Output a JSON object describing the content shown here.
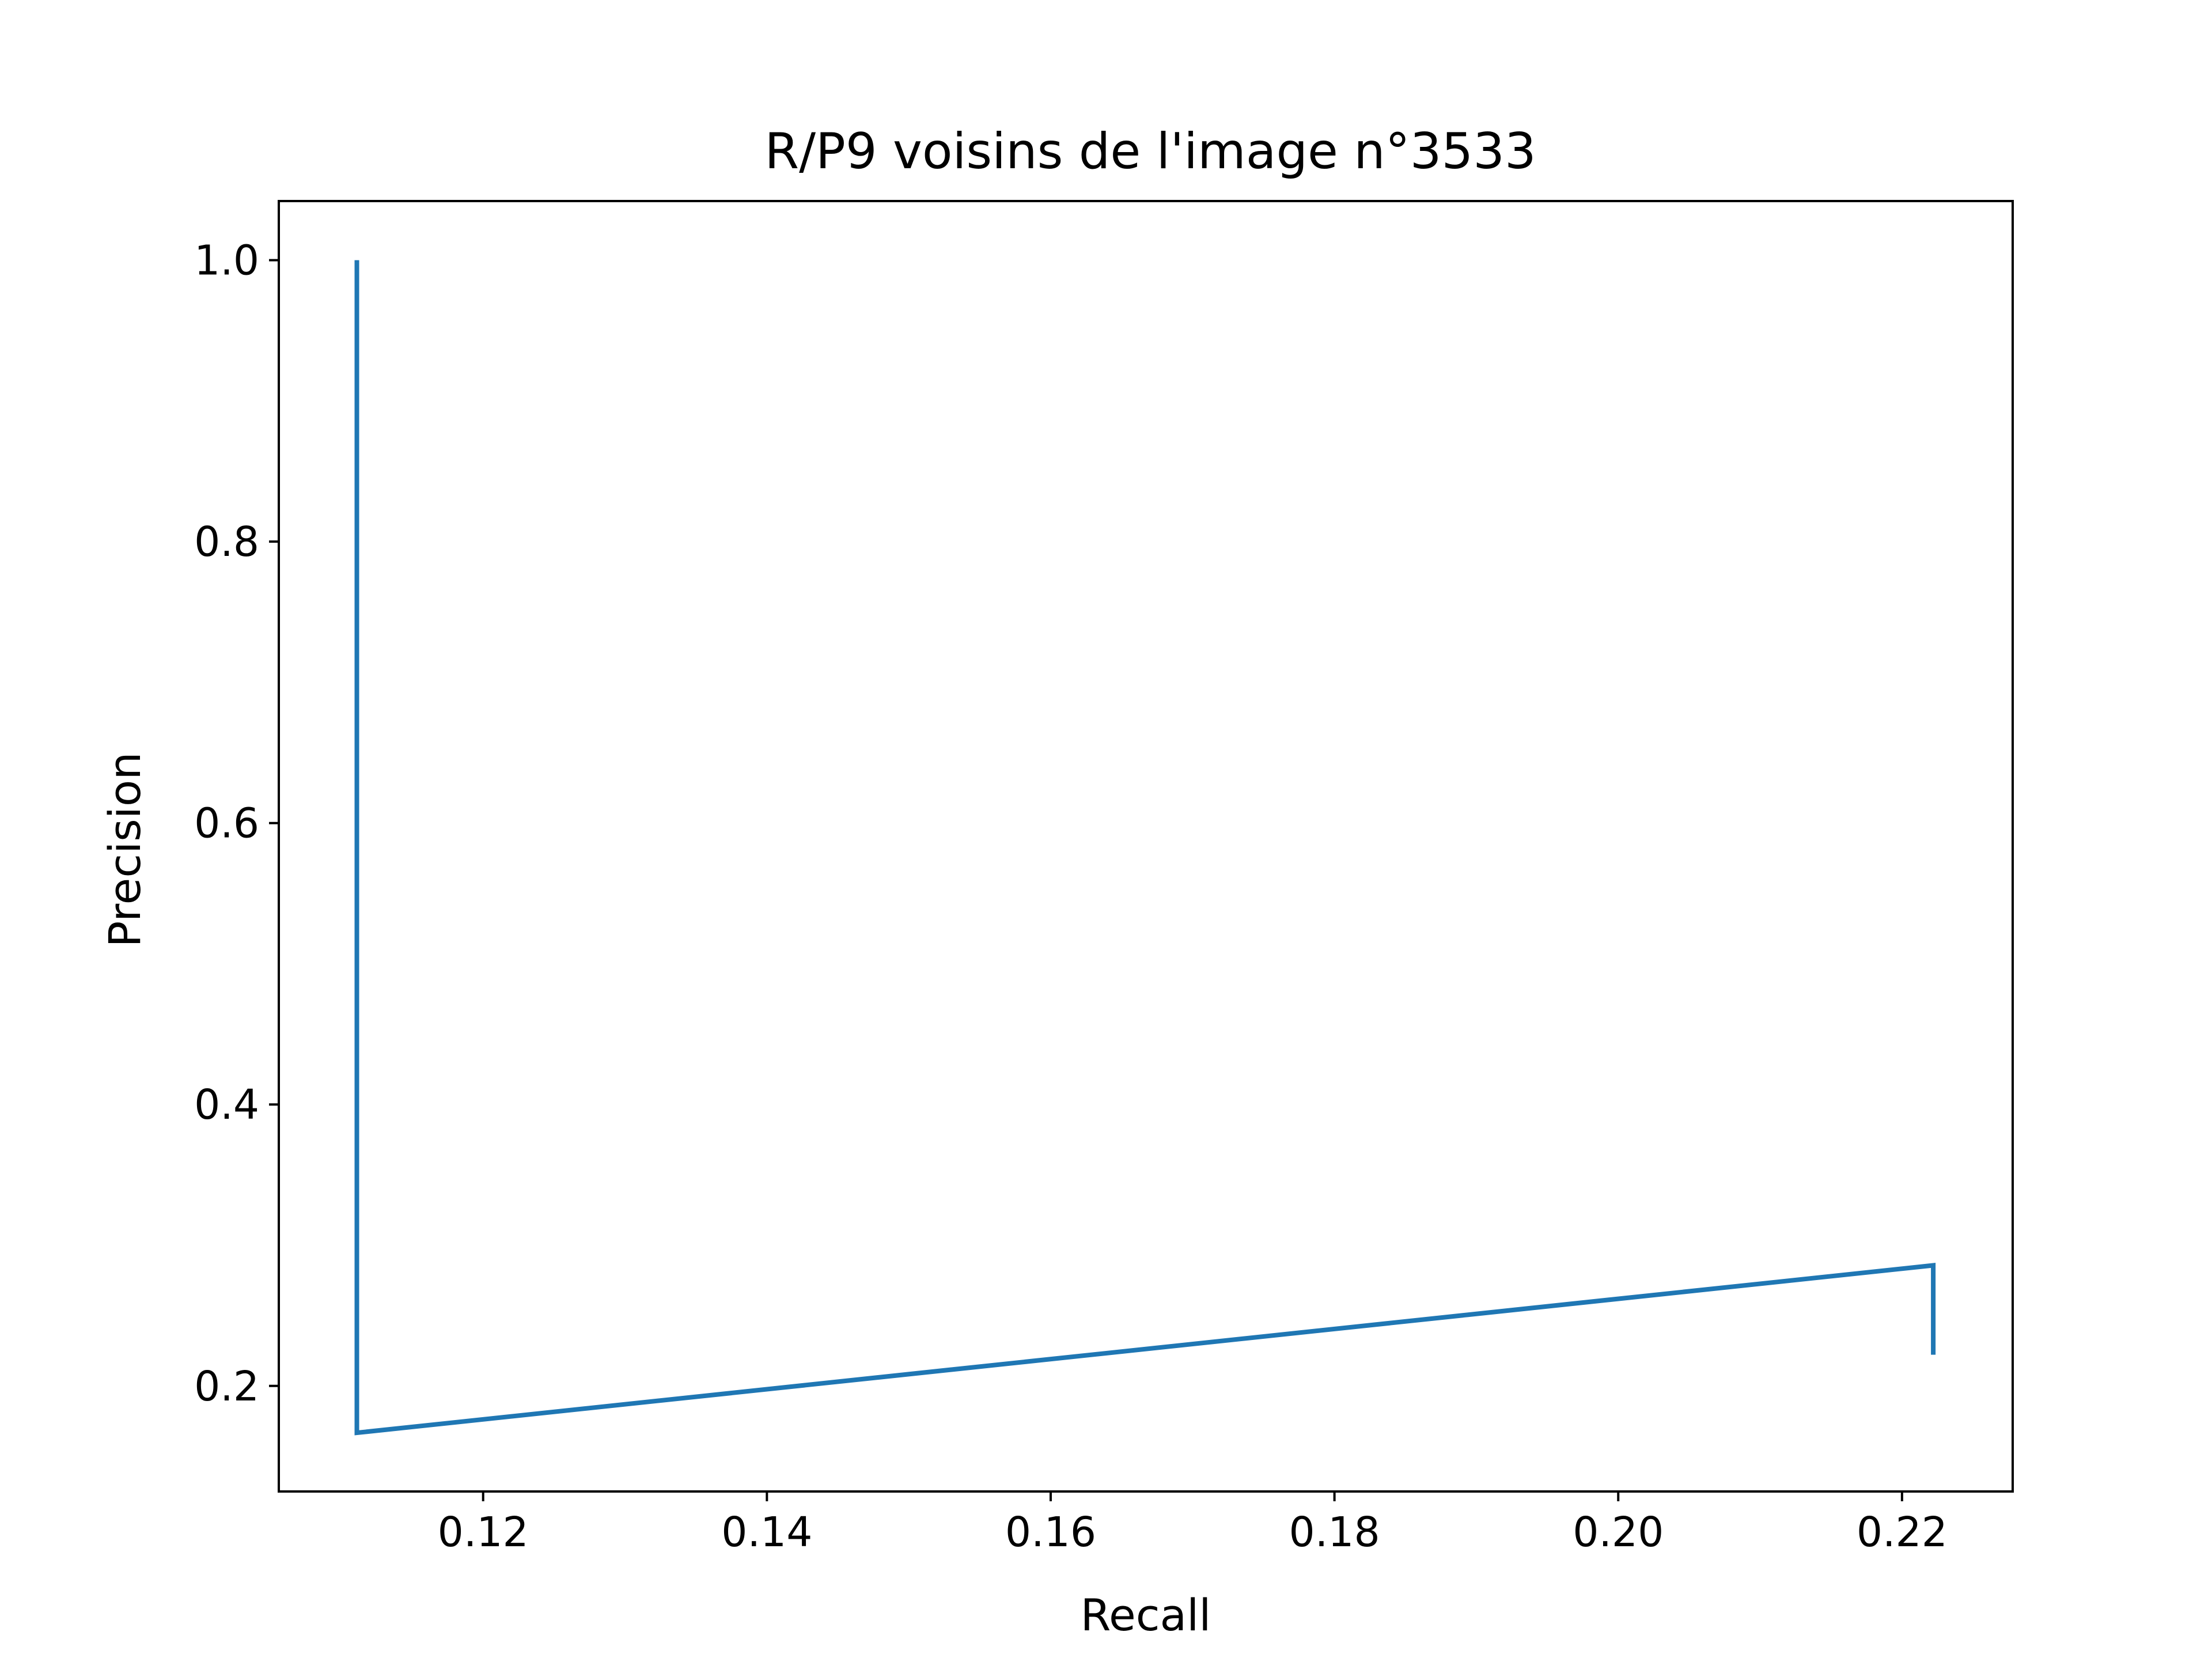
{
  "chart_data": {
    "type": "line",
    "title": "R/P9 voisins de l'image n°3533",
    "xlabel": "Recall",
    "ylabel": "Precision",
    "xlim": [
      0.1056,
      0.2278
    ],
    "ylim": [
      0.125,
      1.042
    ],
    "x_ticks": [
      0.12,
      0.14,
      0.16,
      0.18,
      0.2,
      0.22
    ],
    "x_tick_labels": [
      "0.12",
      "0.14",
      "0.16",
      "0.18",
      "0.20",
      "0.22"
    ],
    "y_ticks": [
      0.2,
      0.4,
      0.6,
      0.8,
      1.0
    ],
    "y_tick_labels": [
      "0.2",
      "0.4",
      "0.6",
      "0.8",
      "1.0"
    ],
    "grid": false,
    "series": [
      {
        "color": "#1f77b4",
        "x": [
          0.1111,
          0.1111,
          0.2222,
          0.2222
        ],
        "y": [
          1.0,
          0.1667,
          0.2857,
          0.2222
        ]
      }
    ]
  }
}
